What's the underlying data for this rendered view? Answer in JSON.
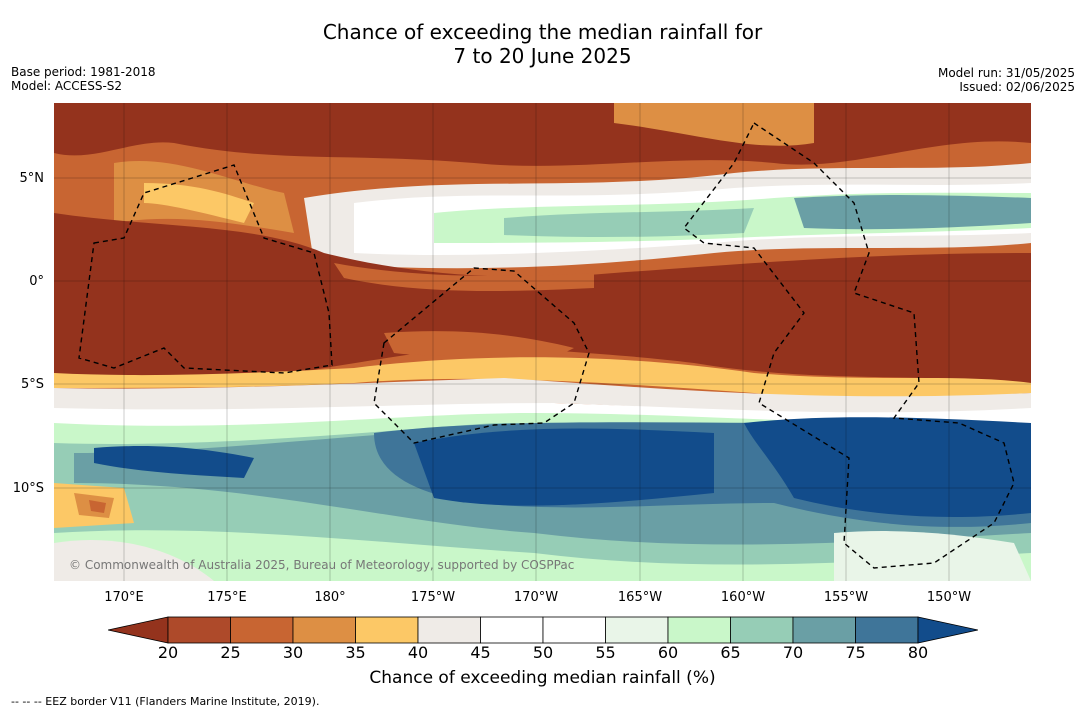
{
  "title_line1": "Chance of exceeding the median rainfall for",
  "title_line2": "7 to 20 June 2025",
  "base_period": "Base period: 1981-2018",
  "model": "Model: ACCESS-S2",
  "model_run": "Model run: 31/05/2025",
  "issued": "Issued: 02/06/2025",
  "copyright": "© Commonwealth of Australia 2025, Bureau of Meteorology, supported by COSPPac",
  "lat_labels": [
    "5°N",
    "0°",
    "5°S",
    "10°S"
  ],
  "lon_labels": [
    "170°E",
    "175°E",
    "180°",
    "175°W",
    "170°W",
    "165°W",
    "160°W",
    "155°W",
    "150°W"
  ],
  "colorbar": {
    "ticks": [
      "20",
      "25",
      "30",
      "35",
      "40",
      "45",
      "50",
      "55",
      "60",
      "65",
      "70",
      "75",
      "80"
    ],
    "colors": [
      "#94331d",
      "#ae4a2a",
      "#c86532",
      "#dd8f44",
      "#fcc866",
      "#efebe7",
      "#ffffff",
      "#ffffff",
      "#e9f5e8",
      "#c9f7c9",
      "#96cdb6",
      "#6a9fa5",
      "#3f7599",
      "#124c8b"
    ],
    "label": "Chance of exceeding median rainfall (%)"
  },
  "footer": "-- -- -- EEZ border V11 (Flanders Marine Institute, 2019)."
}
